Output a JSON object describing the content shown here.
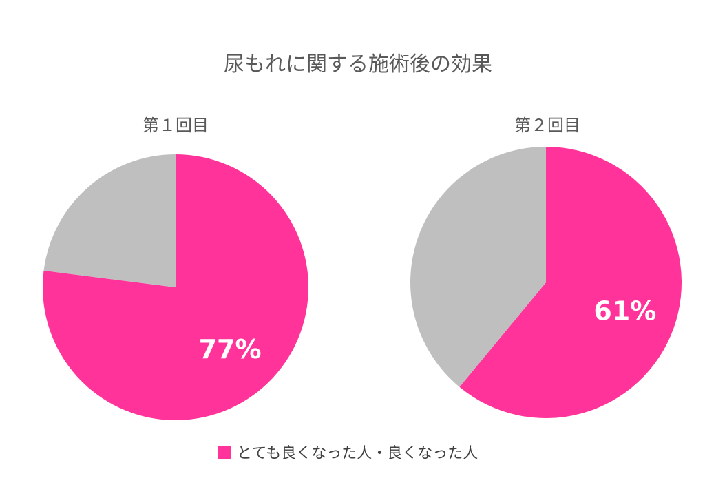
{
  "chart_data": {
    "type": "pie",
    "title": "尿もれに関する施術後の効果",
    "legend": {
      "placement": "bottom",
      "entries": [
        {
          "name": "とても良くなった人・良くなった人",
          "color": "#FF3399"
        }
      ]
    },
    "charts": [
      {
        "subtitle": "第１回目",
        "slices": [
          {
            "value": 77,
            "label": "77%",
            "color": "#FF3399"
          },
          {
            "value": 23,
            "label": "",
            "color": "#BFBFBF"
          }
        ]
      },
      {
        "subtitle": "第２回目",
        "slices": [
          {
            "value": 61,
            "label": "61%",
            "color": "#FF3399"
          },
          {
            "value": 39,
            "label": "",
            "color": "#BFBFBF"
          }
        ]
      }
    ]
  }
}
